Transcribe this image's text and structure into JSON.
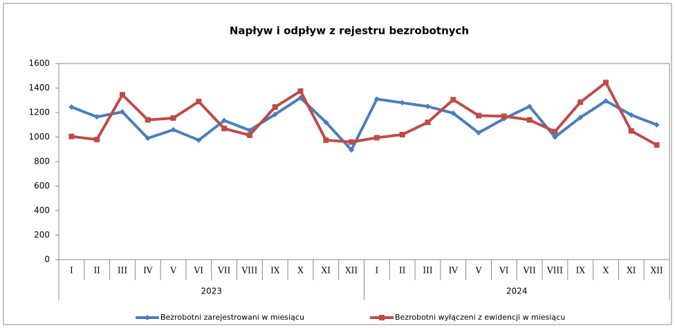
{
  "chart_data": {
    "type": "line",
    "title": "Napływ i odpływ z rejestru bezrobotnych",
    "categories": [
      "I",
      "II",
      "III",
      "IV",
      "V",
      "VI",
      "VII",
      "VIII",
      "IX",
      "X",
      "XI",
      "XII",
      "I",
      "II",
      "III",
      "IV",
      "V",
      "VI",
      "VII",
      "VIII",
      "IX",
      "X",
      "XI",
      "XII"
    ],
    "groups": [
      "2023",
      "2024"
    ],
    "series": [
      {
        "name": "Bezrobotni zarejestrowani w miesiącu",
        "color": "#4a7ebb",
        "marker": "diamond",
        "values": [
          1245,
          1165,
          1205,
          990,
          1060,
          975,
          1135,
          1055,
          1185,
          1320,
          1120,
          895,
          1310,
          1280,
          1250,
          1195,
          1035,
          1150,
          1250,
          1000,
          1160,
          1295,
          1180,
          1100
        ]
      },
      {
        "name": "Bezrobotni wyłączeni z ewidencji w miesiącu",
        "color": "#be4b48",
        "marker": "square",
        "values": [
          1005,
          980,
          1345,
          1140,
          1155,
          1290,
          1070,
          1015,
          1245,
          1375,
          975,
          960,
          995,
          1020,
          1120,
          1305,
          1175,
          1170,
          1140,
          1045,
          1285,
          1445,
          1050,
          935
        ]
      }
    ],
    "ylim": [
      0,
      1600
    ],
    "yticks": [
      0,
      200,
      400,
      600,
      800,
      1000,
      1200,
      1400,
      1600
    ],
    "grid": false,
    "legend": "bottom"
  }
}
